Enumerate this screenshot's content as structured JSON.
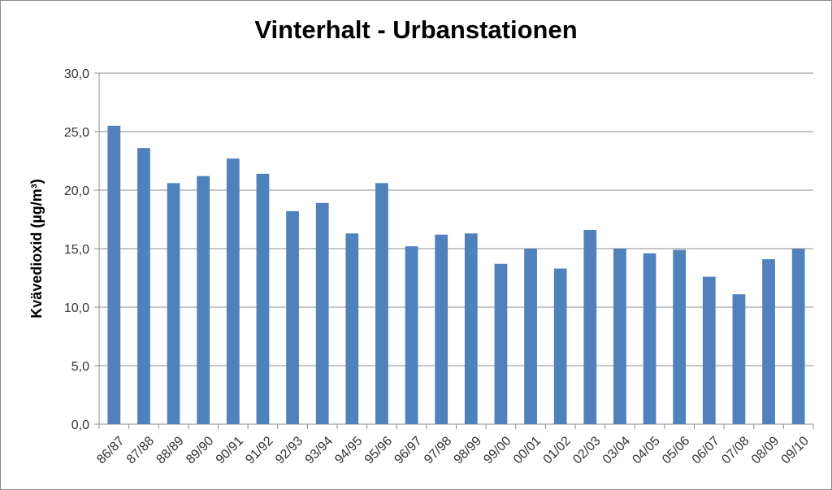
{
  "chart_data": {
    "type": "bar",
    "title": "Vinterhalt - Urbanstationen",
    "xlabel": "",
    "ylabel": "Kvävedioxid  (µg/m³)",
    "ylim": [
      0,
      30
    ],
    "yticks": [
      "0,0",
      "5,0",
      "10,0",
      "15,0",
      "20,0",
      "25,0",
      "30,0"
    ],
    "grid": true,
    "bar_color": "#4f81bd",
    "categories": [
      "86/87",
      "87/88",
      "88/89",
      "89/90",
      "90/91",
      "91/92",
      "92/93",
      "93/94",
      "94/95",
      "95/96",
      "96/97",
      "97/98",
      "98/99",
      "99/00",
      "00/01",
      "01/02",
      "02/03",
      "03/04",
      "04/05",
      "05/06",
      "06/07",
      "07/08",
      "08/09",
      "09/10"
    ],
    "values": [
      25.5,
      23.6,
      20.6,
      21.2,
      22.7,
      21.4,
      18.2,
      18.9,
      16.3,
      20.6,
      15.2,
      16.2,
      16.3,
      13.7,
      15.0,
      13.3,
      16.6,
      15.0,
      14.6,
      14.9,
      12.6,
      11.1,
      14.1,
      15.0
    ]
  }
}
